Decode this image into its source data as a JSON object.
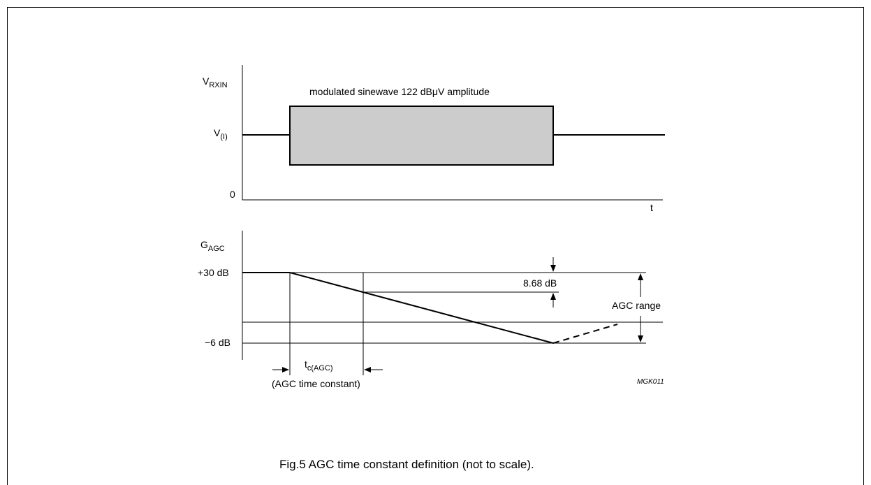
{
  "top_plot": {
    "y_axis_label": {
      "base": "V",
      "sub": "RXIN"
    },
    "level_label": {
      "base": "V",
      "sub": "(I)"
    },
    "zero_label": "0",
    "x_axis_label": "t",
    "box_label": "modulated sinewave 122 dBμV amplitude",
    "box_fill": "#cccccc"
  },
  "bottom_plot": {
    "y_axis_label": {
      "base": "G",
      "sub": "AGC"
    },
    "upper_level": "+30 dB",
    "lower_level": "−6 dB",
    "step_label": "8.68 dB",
    "range_label": "AGC range",
    "tc_label": {
      "base": "t",
      "sub": "c(AGC)"
    },
    "tc_description": "(AGC time constant)"
  },
  "figure_code": "MGK011",
  "caption": "Fig.5  AGC time constant definition (not to scale)."
}
